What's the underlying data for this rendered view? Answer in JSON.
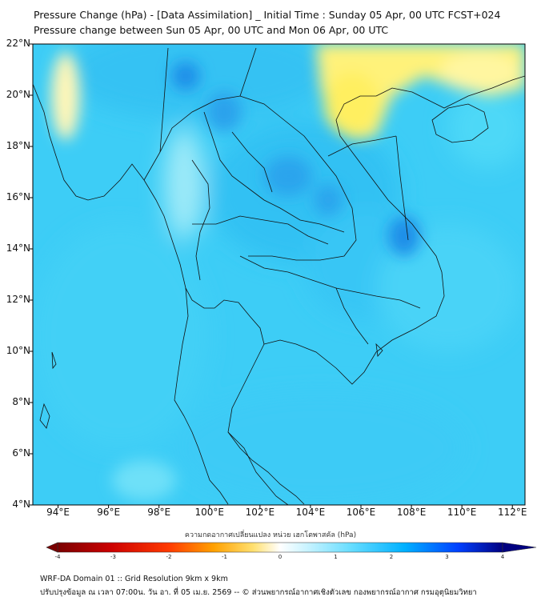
{
  "title_line1": "Pressure Change (hPa) - [Data Assimilation] _ Initial Time : Sunday 05 Apr, 00 UTC FCST+024",
  "title_line2": "Pressure change between Sun 05 Apr, 00 UTC and Mon 06 Apr, 00 UTC",
  "map": {
    "lon_range": [
      93,
      112.5
    ],
    "lat_range": [
      4,
      22
    ],
    "lat_ticks": [
      "22°N",
      "20°N",
      "18°N",
      "16°N",
      "14°N",
      "12°N",
      "10°N",
      "8°N",
      "6°N",
      "4°N"
    ],
    "lon_ticks": [
      "94°E",
      "96°E",
      "98°E",
      "100°E",
      "102°E",
      "104°E",
      "106°E",
      "108°E",
      "110°E",
      "112°E"
    ]
  },
  "colorbar": {
    "title": "ความกดอากาศเปลี่ยนแปลง หน่วย เฮกโตพาสคัล (hPa)",
    "range": [
      -4,
      4
    ],
    "tick_labels": [
      "-4",
      "-3",
      "-2",
      "-1",
      "0",
      "1",
      "2",
      "3",
      "4"
    ],
    "colors": {
      "negative_strong": "#7a0000",
      "negative_mid": "#ff2a00",
      "negative_weak": "#ffd000",
      "zero": "#ffffff",
      "positive_weak": "#66ddff",
      "positive_mid": "#00a8ff",
      "positive_strong": "#000080"
    }
  },
  "footer_line1": "WRF-DA Domain 01 :: Grid Resolution 9km x 9km",
  "footer_line2": "ปรับปรุงข้อมูล ณ เวลา 07:00น. วัน อา. ที่ 05 เม.ย. 2569 -- © ส่วนพยากรณ์อากาศเชิงตัวเลข กองพยากรณ์อากาศ กรมอุตุนิยมวิทยา"
}
